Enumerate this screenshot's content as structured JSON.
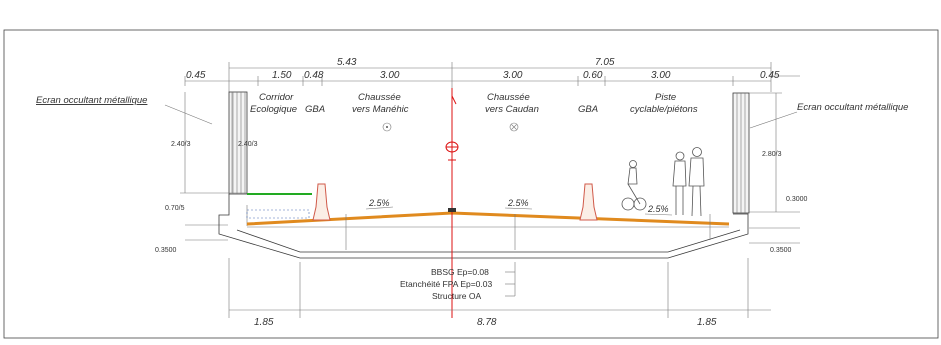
{
  "top_dimensions": {
    "overall": [
      "5.43",
      "7.05"
    ],
    "segments": [
      "0.45",
      "1.50",
      "0.48",
      "3.00",
      "3.00",
      "0.60",
      "3.00",
      "0.45"
    ]
  },
  "zones": {
    "corridor": [
      "Corridor",
      "Ecologique"
    ],
    "gba_left": "GBA",
    "chaussee_left": [
      "Chaussée",
      "vers Manéhic"
    ],
    "chaussee_right": [
      "Chaussée",
      "vers Caudan"
    ],
    "gba_right": "GBA",
    "piste": [
      "Piste",
      "cyclable/piétons"
    ]
  },
  "screens": {
    "left": "Ecran occultant métallique",
    "right": "Ecran occultant métallique"
  },
  "heights": {
    "left_outer": "2.40/3",
    "left_inner": "2.40/3",
    "right": "2.80/3",
    "left_step": "0.70/5",
    "left_bottom": "0.3500",
    "right_step": "0.3000",
    "right_bottom": "0.3500"
  },
  "slopes": [
    "2.5%",
    "2.5%",
    "2.5%"
  ],
  "layers": [
    "BBSG Ep=0.08",
    "Etanchéité FPA Ep=0.03",
    "Structure OA"
  ],
  "bottom_dimensions": [
    "1.85",
    "8.78",
    "1.85"
  ],
  "colors": {
    "pavement": "#e08a1e",
    "green_strip": "#22aa22",
    "axis": "#dd1111",
    "linework": "#3a3a3a"
  }
}
